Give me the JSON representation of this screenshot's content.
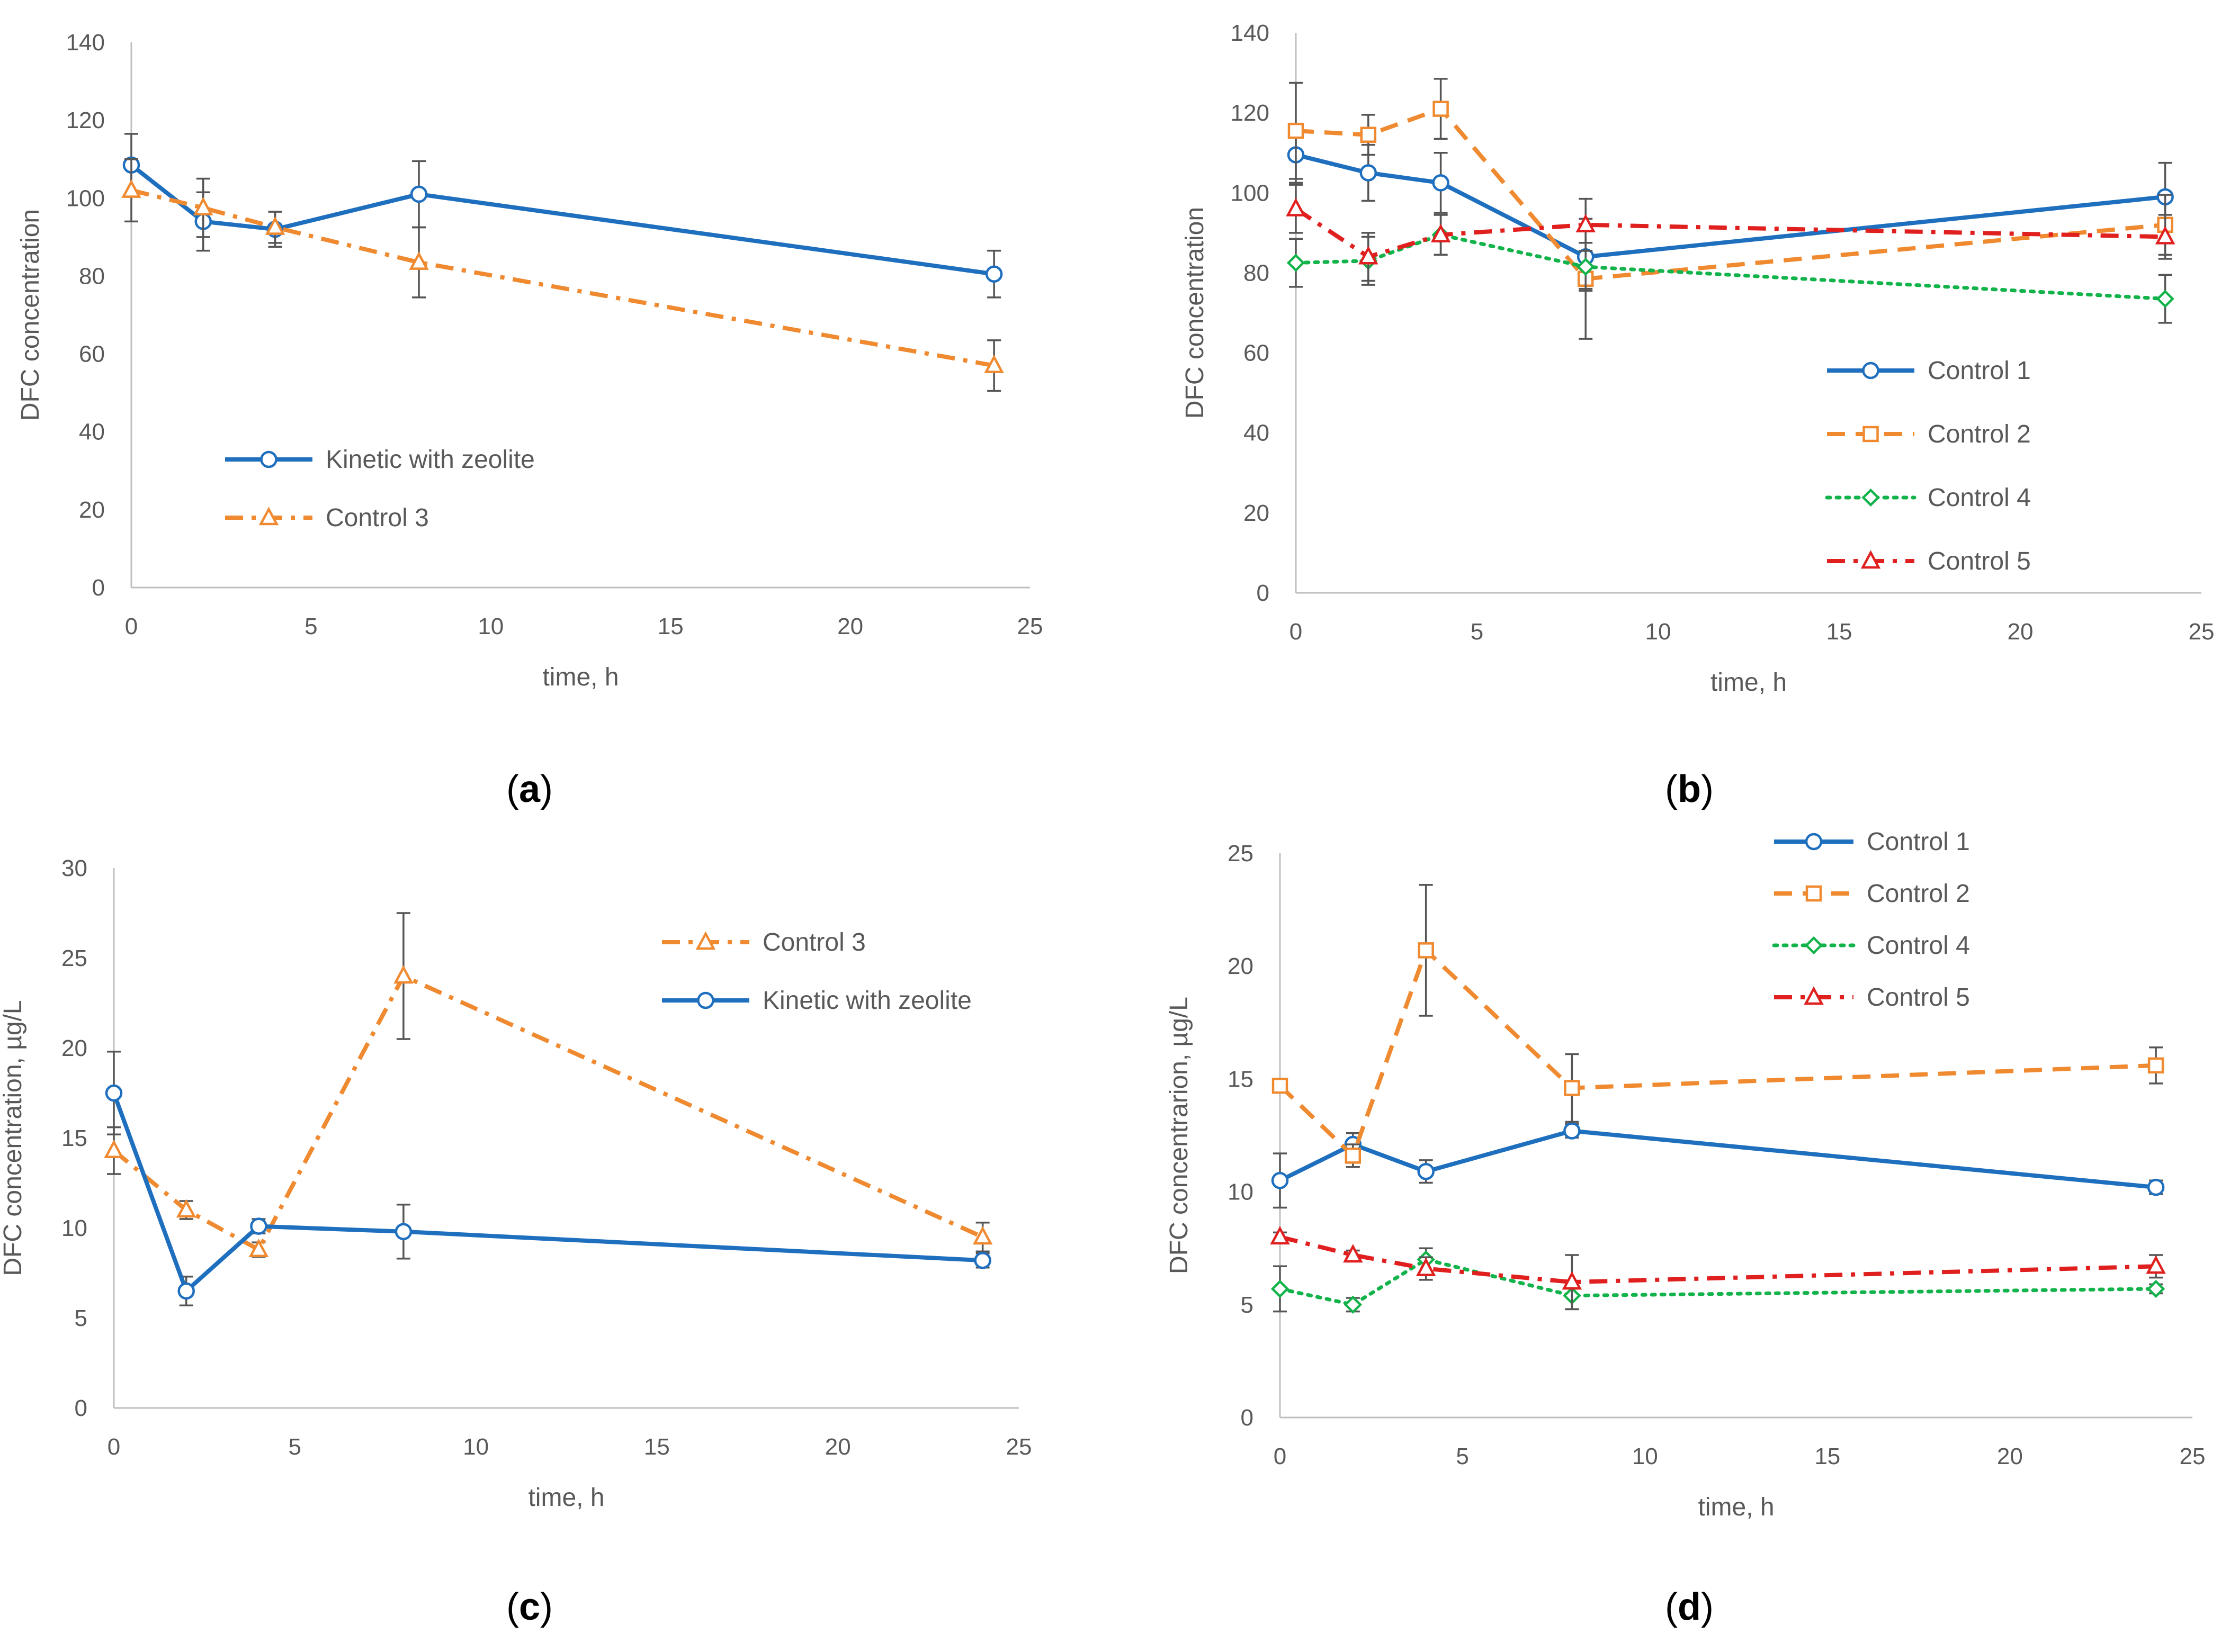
{
  "colors": {
    "blue": "#1f6fbf",
    "orange": "#f08a30",
    "green": "#12b34a",
    "red": "#e01f1f",
    "axis": "#bfbfbf",
    "text": "#595959",
    "errorbar": "#555555"
  },
  "chart_data": [
    {
      "id": "a",
      "type": "line",
      "panel_label": "a",
      "xlabel": "time, h",
      "ylabel": "DFC concentration",
      "xlim": [
        0,
        25
      ],
      "ylim": [
        0,
        140
      ],
      "xticks": [
        "0",
        "5",
        "10",
        "15",
        "20",
        "25"
      ],
      "yticks": [
        "0",
        "20",
        "40",
        "60",
        "80",
        "100",
        "120",
        "140"
      ],
      "legend_position": "center-left",
      "x": [
        0,
        2,
        4,
        8,
        24
      ],
      "series": [
        {
          "name": "Kinetic with zeolite",
          "color": "blue",
          "dash": "solid",
          "marker": "circle",
          "values": [
            108.5,
            94,
            92,
            101,
            80.5
          ],
          "errors": [
            8,
            7.5,
            4.5,
            8.5,
            6
          ]
        },
        {
          "name": "Control 3",
          "color": "orange",
          "dash": "dashdot",
          "marker": "triangle",
          "values": [
            102,
            97.5,
            92.5,
            83.5,
            57
          ],
          "errors": [
            8,
            7.5,
            4,
            9,
            6.5
          ]
        }
      ]
    },
    {
      "id": "b",
      "type": "line",
      "panel_label": "b",
      "xlabel": "time, h",
      "ylabel": "DFC concentration",
      "xlim": [
        0,
        25
      ],
      "ylim": [
        0,
        140
      ],
      "xticks": [
        "0",
        "5",
        "10",
        "15",
        "20",
        "25"
      ],
      "yticks": [
        "0",
        "20",
        "40",
        "60",
        "80",
        "100",
        "120",
        "140"
      ],
      "legend_position": "center-right",
      "x": [
        0,
        2,
        4,
        8,
        24
      ],
      "series": [
        {
          "name": "Control 1",
          "color": "blue",
          "dash": "solid",
          "marker": "circle",
          "values": [
            109.5,
            105,
            102.5,
            84,
            99
          ],
          "errors": [
            7,
            7,
            7.5,
            8,
            8.5
          ]
        },
        {
          "name": "Control 2",
          "color": "orange",
          "dash": "dashed",
          "marker": "square",
          "values": [
            115.5,
            114.5,
            121,
            78.5,
            92
          ],
          "errors": [
            12,
            5,
            7.5,
            15,
            7.5
          ]
        },
        {
          "name": "Control 4",
          "color": "green",
          "dash": "dotted",
          "marker": "diamond",
          "values": [
            82.5,
            83,
            89.5,
            81.5,
            73.5
          ],
          "errors": [
            6,
            6,
            5,
            6,
            6
          ]
        },
        {
          "name": "Control 5",
          "color": "red",
          "dash": "dashdot",
          "marker": "triangle",
          "values": [
            96,
            84,
            89.5,
            92,
            89
          ],
          "errors": [
            6,
            6,
            5,
            6.5,
            5.5
          ]
        }
      ]
    },
    {
      "id": "c",
      "type": "line",
      "panel_label": "c",
      "xlabel": "time, h",
      "ylabel": "DFC concentration, µg/L",
      "xlim": [
        0,
        25
      ],
      "ylim": [
        0,
        30
      ],
      "xticks": [
        "0",
        "5",
        "10",
        "15",
        "20",
        "25"
      ],
      "yticks": [
        "0",
        "5",
        "10",
        "15",
        "20",
        "25",
        "30"
      ],
      "legend_position": "top-right",
      "x": [
        0,
        2,
        4,
        8,
        24
      ],
      "series": [
        {
          "name": "Control 3",
          "color": "orange",
          "dash": "dashdot",
          "marker": "triangle",
          "values": [
            14.3,
            11,
            8.8,
            24,
            9.5
          ],
          "errors": [
            1.3,
            0.5,
            0.4,
            3.5,
            0.8
          ]
        },
        {
          "name": "Kinetic with zeolite",
          "color": "blue",
          "dash": "solid",
          "marker": "circle",
          "values": [
            17.5,
            6.5,
            10.1,
            9.8,
            8.2
          ],
          "errors": [
            2.3,
            0.8,
            0.4,
            1.5,
            0.4
          ]
        }
      ]
    },
    {
      "id": "d",
      "type": "line",
      "panel_label": "d",
      "xlabel": "time, h",
      "ylabel": "DFC concentrarion, µg/L",
      "xlim": [
        0,
        25
      ],
      "ylim": [
        0,
        25
      ],
      "xticks": [
        "0",
        "5",
        "10",
        "15",
        "20",
        "25"
      ],
      "yticks": [
        "0",
        "5",
        "10",
        "15",
        "20",
        "25"
      ],
      "legend_position": "top-center",
      "x": [
        0,
        2,
        4,
        8,
        24
      ],
      "series": [
        {
          "name": "Control 1",
          "color": "blue",
          "dash": "solid",
          "marker": "circle",
          "values": [
            10.5,
            12.1,
            10.9,
            12.7,
            10.2
          ],
          "errors": [
            1.2,
            0.5,
            0.5,
            0.3,
            0.3
          ]
        },
        {
          "name": "Control 2",
          "color": "orange",
          "dash": "dashed",
          "marker": "square",
          "values": [
            14.7,
            11.6,
            20.7,
            14.6,
            15.6
          ],
          "errors": [
            0.3,
            0.5,
            2.9,
            1.5,
            0.8
          ]
        },
        {
          "name": "Control 4",
          "color": "green",
          "dash": "dotted",
          "marker": "diamond",
          "values": [
            5.7,
            5,
            7,
            5.4,
            5.7
          ],
          "errors": [
            1,
            0.3,
            0.5,
            0.6,
            0.2
          ]
        },
        {
          "name": "Control 5",
          "color": "red",
          "dash": "dashdot",
          "marker": "triangle",
          "values": [
            8,
            7.2,
            6.6,
            6,
            6.7
          ],
          "errors": [
            0.2,
            0.2,
            0.5,
            1.2,
            0.5
          ]
        }
      ]
    }
  ]
}
